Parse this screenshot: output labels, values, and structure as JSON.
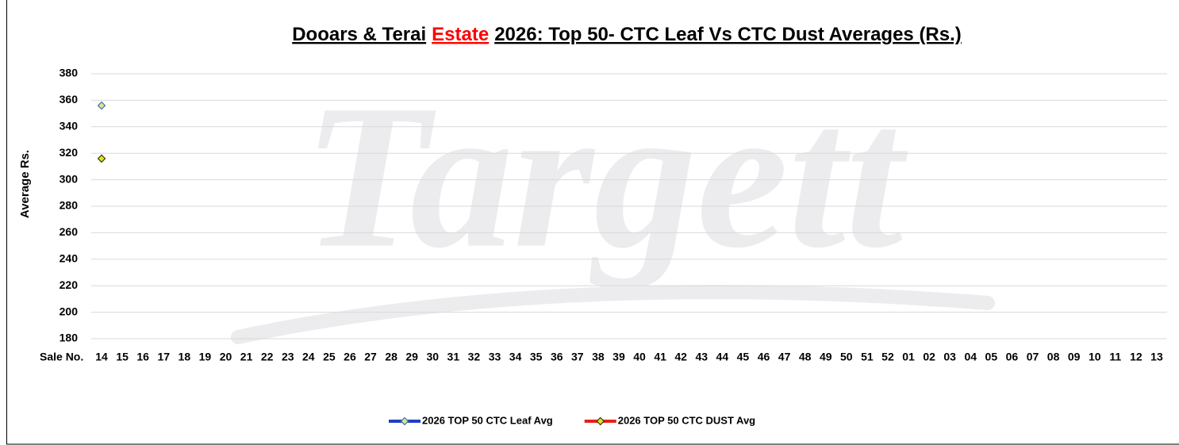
{
  "chart_data": {
    "type": "line",
    "title": [
      {
        "text": "Dooars & Terai",
        "color": "#000000"
      },
      {
        "text": "Estate",
        "color": "#ff0000"
      },
      {
        "text": "2026: Top 50- CTC Leaf Vs CTC Dust  Averages (Rs.)",
        "color": "#000000"
      }
    ],
    "watermark": "Targett",
    "x_label": "Sale No.",
    "y_label": "Average Rs.",
    "categories": [
      "14",
      "15",
      "16",
      "17",
      "18",
      "19",
      "20",
      "21",
      "22",
      "23",
      "24",
      "25",
      "26",
      "27",
      "28",
      "29",
      "30",
      "31",
      "32",
      "33",
      "34",
      "35",
      "36",
      "37",
      "38",
      "39",
      "40",
      "41",
      "42",
      "43",
      "44",
      "45",
      "46",
      "47",
      "48",
      "49",
      "50",
      "51",
      "52",
      "01",
      "02",
      "03",
      "04",
      "05",
      "06",
      "07",
      "08",
      "09",
      "10",
      "11",
      "12",
      "13"
    ],
    "series": [
      {
        "name": "2026 TOP 50 CTC Leaf Avg",
        "color": "#1f3fc4",
        "marker_fill": "#d6e68a",
        "marker_stroke": "#4a6fa8",
        "values": [
          356,
          null,
          null,
          null,
          null,
          null,
          null,
          null,
          null,
          null,
          null,
          null,
          null,
          null,
          null,
          null,
          null,
          null,
          null,
          null,
          null,
          null,
          null,
          null,
          null,
          null,
          null,
          null,
          null,
          null,
          null,
          null,
          null,
          null,
          null,
          null,
          null,
          null,
          null,
          null,
          null,
          null,
          null,
          null,
          null,
          null,
          null,
          null,
          null,
          null,
          null,
          null
        ]
      },
      {
        "name": "2026 TOP 50 CTC DUST Avg",
        "color": "#e8201c",
        "marker_fill": "#e6e020",
        "marker_stroke": "#2a3a10",
        "values": [
          316,
          null,
          null,
          null,
          null,
          null,
          null,
          null,
          null,
          null,
          null,
          null,
          null,
          null,
          null,
          null,
          null,
          null,
          null,
          null,
          null,
          null,
          null,
          null,
          null,
          null,
          null,
          null,
          null,
          null,
          null,
          null,
          null,
          null,
          null,
          null,
          null,
          null,
          null,
          null,
          null,
          null,
          null,
          null,
          null,
          null,
          null,
          null,
          null,
          null,
          null,
          null
        ]
      }
    ],
    "ylim": [
      180,
      380
    ],
    "yticks": [
      180,
      200,
      220,
      240,
      260,
      280,
      300,
      320,
      340,
      360,
      380
    ],
    "grid": true,
    "legend": "bottom"
  }
}
